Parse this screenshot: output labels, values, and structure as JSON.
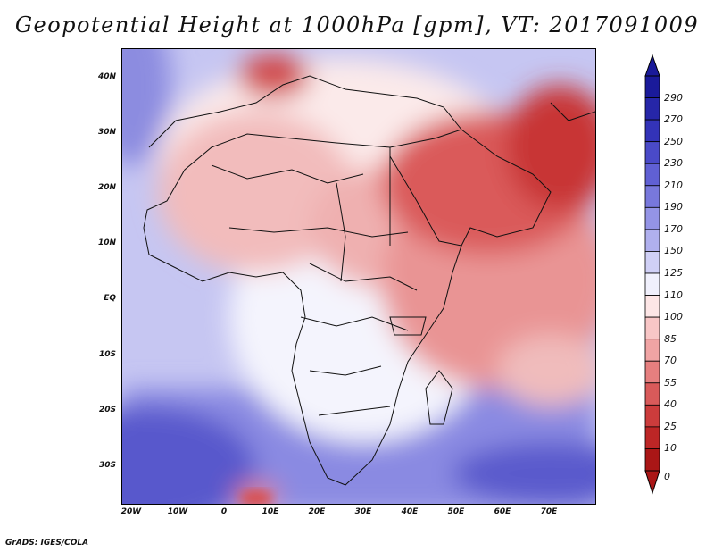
{
  "title": "Geopotential Height at 1000hPa [gpm], VT: 2017091009",
  "credit": "GrADS: IGES/COLA",
  "map": {
    "lon_range": [
      -22,
      80
    ],
    "lat_range": [
      -36,
      46
    ],
    "lat_labels": [
      "40N",
      "30N",
      "20N",
      "10N",
      "EQ",
      "10S",
      "20S",
      "30S"
    ],
    "lat_values": [
      40,
      30,
      20,
      10,
      0,
      -10,
      -20,
      -30
    ],
    "lon_labels": [
      "20W",
      "10W",
      "0",
      "10E",
      "20E",
      "30E",
      "40E",
      "50E",
      "60E",
      "70E"
    ],
    "lon_values": [
      -20,
      -10,
      0,
      10,
      20,
      30,
      40,
      50,
      60,
      70
    ]
  },
  "colorbar": {
    "labels": [
      "290",
      "270",
      "250",
      "230",
      "210",
      "190",
      "170",
      "150",
      "125",
      "110",
      "100",
      "85",
      "70",
      "55",
      "40",
      "25",
      "10",
      "0"
    ],
    "colors": [
      "#1a1a9a",
      "#2626a8",
      "#3333b8",
      "#4a4ac8",
      "#6060d4",
      "#7878dc",
      "#9494e6",
      "#b0b0ee",
      "#d0d0f6",
      "#f0f0fc",
      "#fde6e6",
      "#f8c6c6",
      "#f0a4a4",
      "#e67f7f",
      "#d95a5a",
      "#cc3c3c",
      "#bd2626",
      "#aa1616"
    ]
  }
}
